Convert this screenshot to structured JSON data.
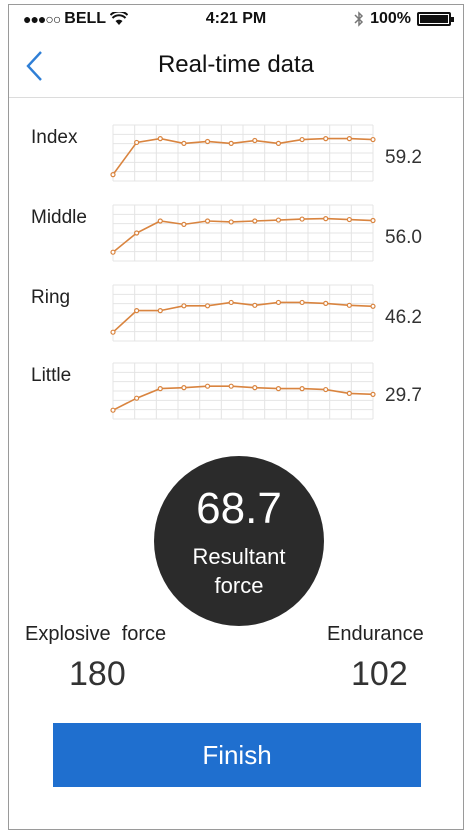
{
  "status_bar": {
    "signal": "●●●○○",
    "carrier": "BELL",
    "time": "4:21 PM",
    "battery": "100%"
  },
  "nav": {
    "title": "Real-time data"
  },
  "rows": [
    {
      "label": "Index",
      "value": "59.2",
      "points": [
        0.05,
        0.72,
        0.8,
        0.7,
        0.74,
        0.7,
        0.76,
        0.7,
        0.78,
        0.8,
        0.8,
        0.78
      ]
    },
    {
      "label": "Middle",
      "value": "56.0",
      "points": [
        0.1,
        0.5,
        0.75,
        0.68,
        0.75,
        0.73,
        0.75,
        0.77,
        0.79,
        0.8,
        0.78,
        0.76
      ]
    },
    {
      "label": "Ring",
      "value": "46.2",
      "points": [
        0.1,
        0.55,
        0.55,
        0.65,
        0.65,
        0.72,
        0.66,
        0.72,
        0.72,
        0.7,
        0.66,
        0.64
      ]
    },
    {
      "label": "Little",
      "value": "29.7",
      "points": [
        0.1,
        0.35,
        0.55,
        0.57,
        0.6,
        0.6,
        0.57,
        0.55,
        0.55,
        0.53,
        0.45,
        0.43
      ]
    }
  ],
  "chart_colors": {
    "line": "#d9843f",
    "grid": "#e4e4e4"
  },
  "resultant": {
    "value": "68.7",
    "label_line1": "Resultant",
    "label_line2": "force"
  },
  "metrics": {
    "explosive": {
      "label": "Explosive  force",
      "value": "180"
    },
    "endurance": {
      "label": "Endurance",
      "value": "102"
    }
  },
  "finish_label": "Finish",
  "colors": {
    "primary": "#1f6fcf",
    "accent": "#d9843f",
    "circle": "#2b2b2b"
  }
}
